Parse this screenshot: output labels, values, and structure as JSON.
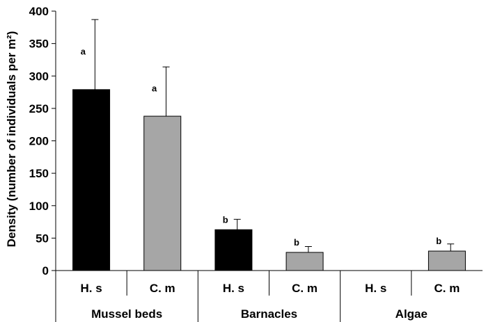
{
  "chart_data": {
    "type": "bar",
    "ylabel": "Density (number of individuals per m²)",
    "ylim": [
      0,
      400
    ],
    "yticks": [
      0,
      50,
      100,
      150,
      200,
      250,
      300,
      350,
      400
    ],
    "grid": false,
    "groups": [
      "Mussel beds",
      "Barnacles",
      "Algae"
    ],
    "categories": [
      "H. s",
      "C. m",
      "H. s",
      "C. m",
      "H. s",
      "C. m"
    ],
    "values": [
      279,
      238,
      63,
      28,
      0,
      30
    ],
    "errors": [
      108,
      76,
      16,
      9,
      0,
      11
    ],
    "labels": [
      "a",
      "a",
      "b",
      "b",
      "",
      "b"
    ],
    "bar_colors": [
      "#000000",
      "#a6a6a6",
      "#000000",
      "#a6a6a6",
      "#000000",
      "#a6a6a6"
    ]
  }
}
